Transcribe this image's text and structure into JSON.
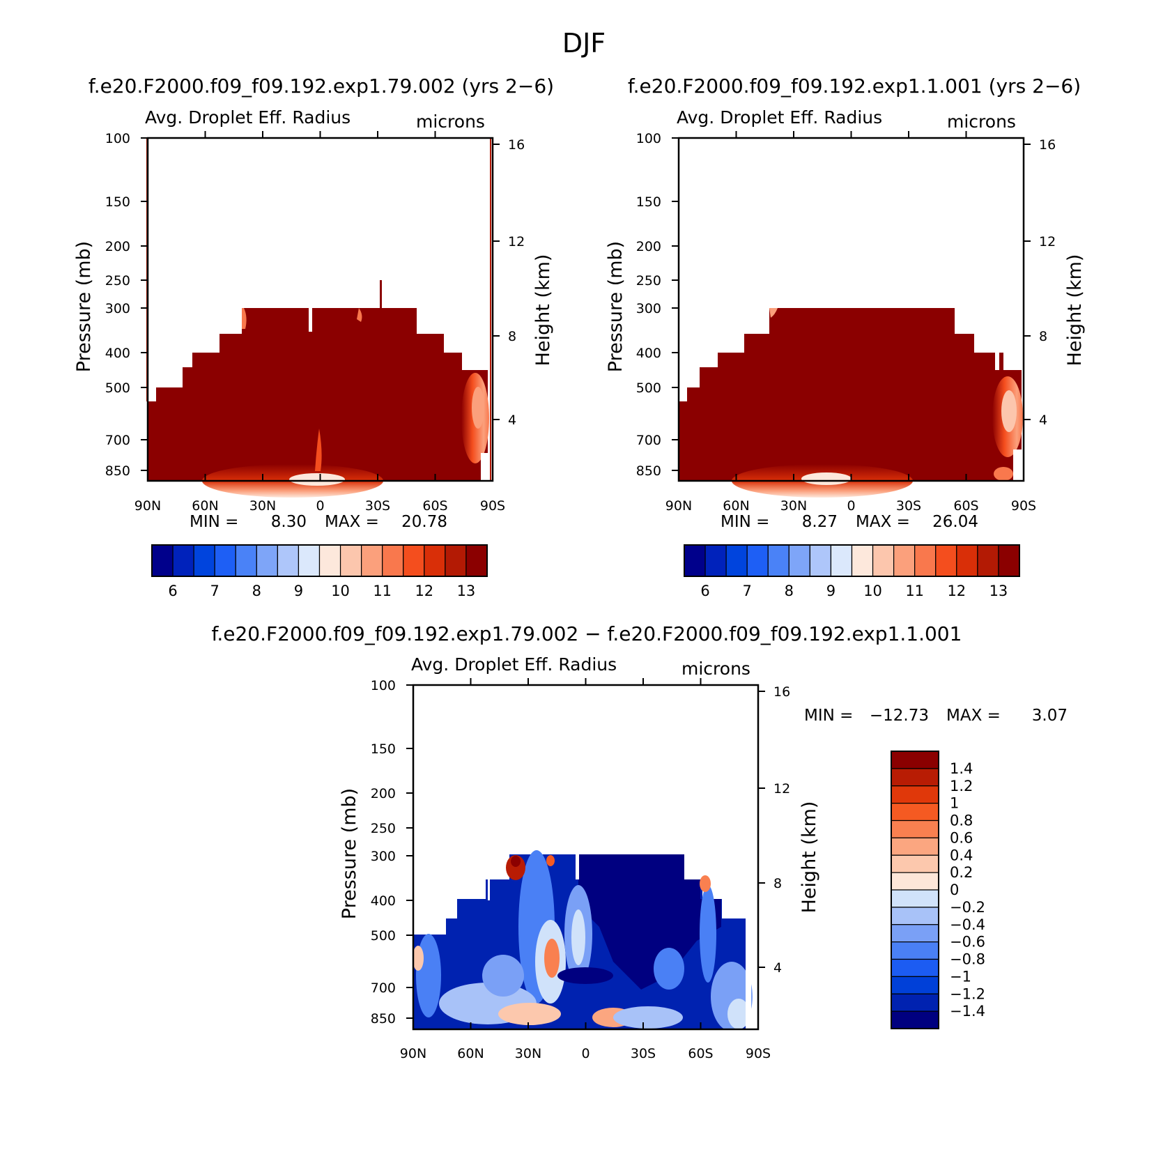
{
  "figure": {
    "title": "DJF"
  },
  "colors": {
    "positive_scale": [
      "#00008b",
      "#0022bb",
      "#0044dd",
      "#1e5ff5",
      "#4a82f7",
      "#7ea5f8",
      "#aec6fa",
      "#dbe8fc",
      "#fde8dc",
      "#fcc6ad",
      "#fba07c",
      "#f9784d",
      "#f44e1e",
      "#d92f08",
      "#b31a04",
      "#8b0000"
    ],
    "diff_scale": [
      "#000080",
      "#0022b0",
      "#0040d8",
      "#1c5cf2",
      "#4a80f5",
      "#7aa0f6",
      "#a8c2f8",
      "#d0e2fa",
      "#fde6d8",
      "#fcc8ad",
      "#fba680",
      "#f98050",
      "#f55a22",
      "#e0380a",
      "#b81c04",
      "#8b0000"
    ]
  },
  "chart_data": [
    {
      "type": "heatmap",
      "panel_title": "f.e20.F2000.f09_f09.192.exp1.79.002 (yrs 2−6)",
      "title": "Avg. Droplet Eff. Radius",
      "units": "microns",
      "xlabel": "",
      "ylabel": "Pressure (mb)",
      "ylabel_right": "Height (km)",
      "x_ticks": [
        "90N",
        "60N",
        "30N",
        "0",
        "30S",
        "60S",
        "90S"
      ],
      "y_ticks": [
        "100",
        "150",
        "200",
        "250",
        "300",
        "400",
        "500",
        "700",
        "850"
      ],
      "y_ticks_right": [
        "16",
        "12",
        "8",
        "4"
      ],
      "colorbar_labels": [
        "6",
        "7",
        "8",
        "9",
        "10",
        "11",
        "12",
        "13"
      ],
      "min_label": "MIN =",
      "min_value": "8.30",
      "max_label": "MAX =",
      "max_value": "20.78",
      "colorbar_orientation": "horizontal"
    },
    {
      "type": "heatmap",
      "panel_title": "f.e20.F2000.f09_f09.192.exp1.1.001 (yrs 2−6)",
      "title": "Avg. Droplet Eff. Radius",
      "units": "microns",
      "xlabel": "",
      "ylabel": "Pressure (mb)",
      "ylabel_right": "Height (km)",
      "x_ticks": [
        "90N",
        "60N",
        "30N",
        "0",
        "30S",
        "60S",
        "90S"
      ],
      "y_ticks": [
        "100",
        "150",
        "200",
        "250",
        "300",
        "400",
        "500",
        "700",
        "850"
      ],
      "y_ticks_right": [
        "16",
        "12",
        "8",
        "4"
      ],
      "colorbar_labels": [
        "6",
        "7",
        "8",
        "9",
        "10",
        "11",
        "12",
        "13"
      ],
      "min_label": "MIN =",
      "min_value": "8.27",
      "max_label": "MAX =",
      "max_value": "26.04",
      "colorbar_orientation": "horizontal"
    },
    {
      "type": "heatmap",
      "panel_title": "f.e20.F2000.f09_f09.192.exp1.79.002 − f.e20.F2000.f09_f09.192.exp1.1.001",
      "title": "Avg. Droplet Eff. Radius",
      "units": "microns",
      "xlabel": "",
      "ylabel": "Pressure (mb)",
      "ylabel_right": "Height (km)",
      "x_ticks": [
        "90N",
        "60N",
        "30N",
        "0",
        "30S",
        "60S",
        "90S"
      ],
      "y_ticks": [
        "100",
        "150",
        "200",
        "250",
        "300",
        "400",
        "500",
        "700",
        "850"
      ],
      "y_ticks_right": [
        "16",
        "12",
        "8",
        "4"
      ],
      "colorbar_labels": [
        "1.4",
        "1.2",
        "1",
        "0.8",
        "0.6",
        "0.4",
        "0.2",
        "0",
        "−0.2",
        "−0.4",
        "−0.6",
        "−0.8",
        "−1",
        "−1.2",
        "−1.4"
      ],
      "min_label": "MIN =",
      "min_value": "−12.73",
      "max_label": "MAX =",
      "max_value": "3.07",
      "colorbar_orientation": "vertical"
    }
  ]
}
